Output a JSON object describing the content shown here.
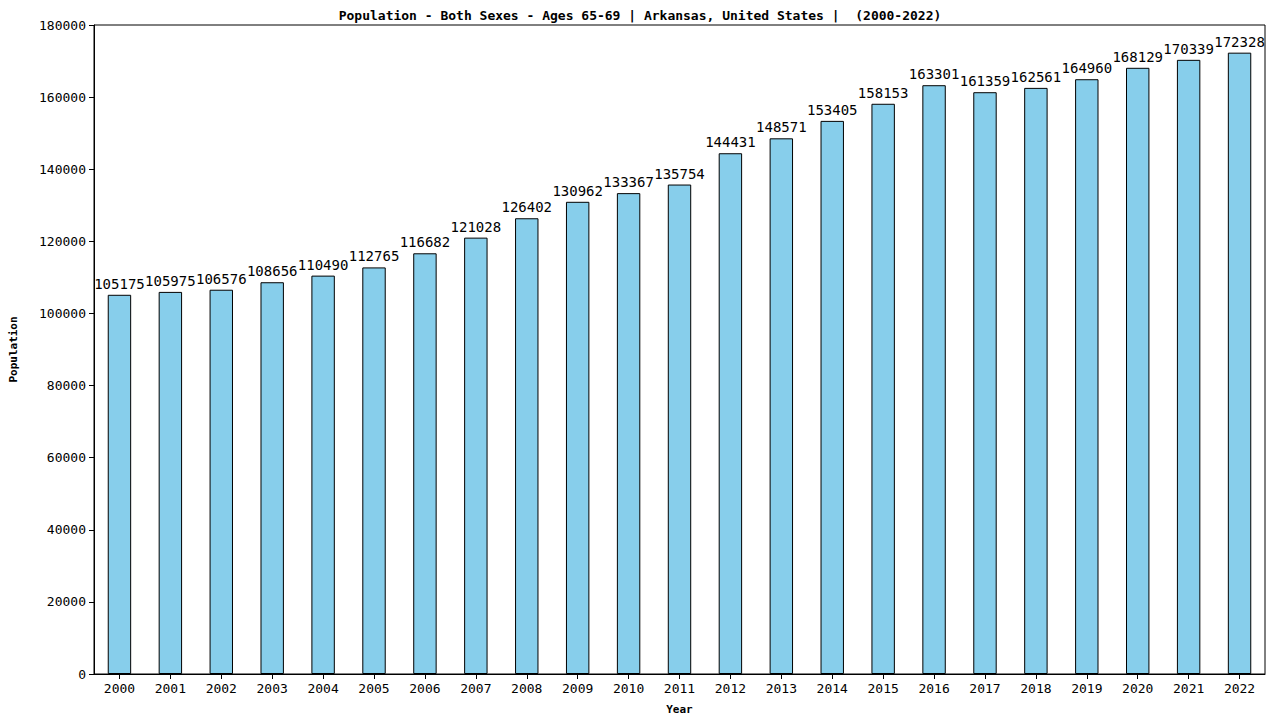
{
  "chart_data": {
    "type": "bar",
    "title": "Population - Both Sexes - Ages 65-69 | Arkansas, United States |  (2000-2022)",
    "x_label": "Year",
    "y_label": "Population",
    "categories": [
      "2000",
      "2001",
      "2002",
      "2003",
      "2004",
      "2005",
      "2006",
      "2007",
      "2008",
      "2009",
      "2010",
      "2011",
      "2012",
      "2013",
      "2014",
      "2015",
      "2016",
      "2017",
      "2018",
      "2019",
      "2020",
      "2021",
      "2022"
    ],
    "values": [
      105175,
      105975,
      106576,
      108656,
      110490,
      112765,
      116682,
      121028,
      126402,
      130962,
      133367,
      135754,
      144431,
      148571,
      153405,
      158153,
      163301,
      161359,
      162561,
      164960,
      168129,
      170339,
      172328
    ],
    "color": "#87ceeb",
    "ylim": [
      0,
      180000
    ],
    "yticks": [
      0,
      20000,
      40000,
      60000,
      80000,
      100000,
      120000,
      140000,
      160000,
      180000
    ],
    "grid": false,
    "data_labels": true
  }
}
